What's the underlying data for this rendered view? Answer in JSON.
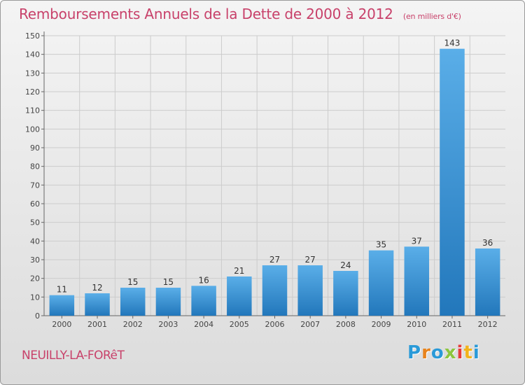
{
  "header": {
    "title": "Remboursements Annuels de la Dette de 2000 à 2012",
    "subtitle": "(en milliers d'€)"
  },
  "footer": {
    "commune": "NEUILLY-LA-FORêT",
    "logo_letters": [
      "P",
      "r",
      "o",
      "x",
      "i",
      "t",
      "i"
    ]
  },
  "colors": {
    "title": "#c8416a",
    "bar_light": "#5aaee8",
    "bar_dark": "#2277bb"
  },
  "chart_data": {
    "type": "bar",
    "categories": [
      "2000",
      "2001",
      "2002",
      "2003",
      "2004",
      "2005",
      "2006",
      "2007",
      "2008",
      "2009",
      "2010",
      "2011",
      "2012"
    ],
    "values": [
      11,
      12,
      15,
      15,
      16,
      21,
      27,
      27,
      24,
      35,
      37,
      143,
      36
    ],
    "ylim": [
      0,
      150
    ],
    "yticks": [
      0,
      10,
      20,
      30,
      40,
      50,
      60,
      70,
      80,
      90,
      100,
      110,
      120,
      130,
      140,
      150
    ],
    "grid": true,
    "legend": "none"
  }
}
